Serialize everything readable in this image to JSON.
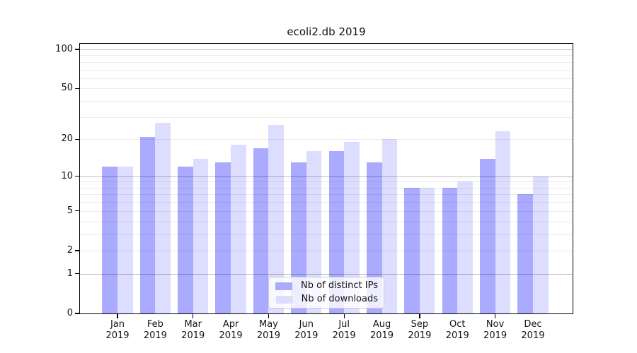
{
  "figure": {
    "title": "ecoli2.db 2019"
  },
  "chart_data": {
    "type": "bar",
    "title": "ecoli2.db 2019",
    "categories": [
      "Jan 2019",
      "Feb 2019",
      "Mar 2019",
      "Apr 2019",
      "May 2019",
      "Jun 2019",
      "Jul 2019",
      "Aug 2019",
      "Sep 2019",
      "Oct 2019",
      "Nov 2019",
      "Dec 2019"
    ],
    "category_line1": [
      "Jan",
      "Feb",
      "Mar",
      "Apr",
      "May",
      "Jun",
      "Jul",
      "Aug",
      "Sep",
      "Oct",
      "Nov",
      "Dec"
    ],
    "category_line2": [
      "2019",
      "2019",
      "2019",
      "2019",
      "2019",
      "2019",
      "2019",
      "2019",
      "2019",
      "2019",
      "2019",
      "2019"
    ],
    "series": [
      {
        "name": "Nb of distinct IPs",
        "color": "#aaaaff",
        "values": [
          12,
          21,
          12,
          13,
          17,
          13,
          16,
          13,
          8,
          8,
          14,
          7
        ]
      },
      {
        "name": "Nb of downloads",
        "color": "#ddddff",
        "values": [
          12,
          27,
          14,
          18,
          26,
          16,
          19,
          20,
          8,
          9,
          23,
          10
        ]
      }
    ],
    "xlabel": "",
    "ylabel": "",
    "yscale": "log10(value+1)",
    "ylim": [
      0,
      110
    ],
    "yticks": [
      0,
      1,
      2,
      5,
      10,
      20,
      50,
      100
    ],
    "grid_major": [
      1,
      10,
      100
    ],
    "grid_minor": [
      2,
      3,
      4,
      5,
      6,
      7,
      8,
      9,
      20,
      30,
      40,
      50,
      60,
      70,
      80,
      90
    ],
    "xticks_every_n_months": 2,
    "grid": "on",
    "legend_position": "lower center"
  },
  "legend": {
    "items": [
      {
        "label": "Nb of distinct IPs",
        "color": "#aaaaff"
      },
      {
        "label": "Nb of downloads",
        "color": "#ddddff"
      }
    ]
  }
}
